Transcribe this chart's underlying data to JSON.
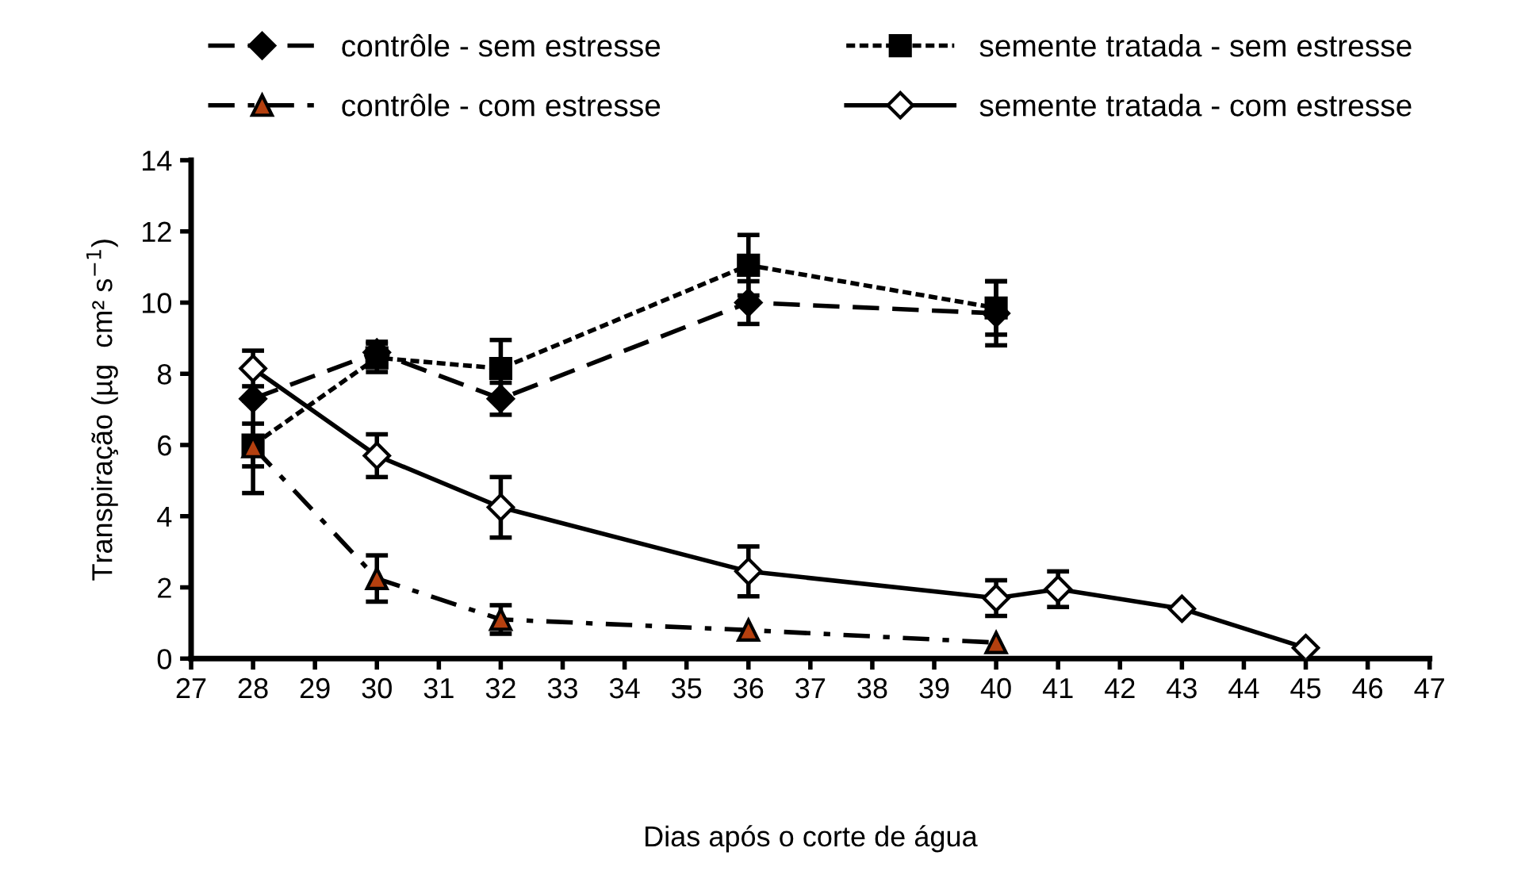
{
  "chart_data": {
    "type": "line",
    "xlabel": "Dias após o corte de água",
    "ylabel": "Transpiração (µg  cm² s$^{−1}$)",
    "xlim": [
      27,
      47
    ],
    "xticks": [
      27,
      28,
      29,
      30,
      31,
      32,
      33,
      34,
      35,
      36,
      37,
      38,
      39,
      40,
      41,
      42,
      43,
      44,
      45,
      46,
      47
    ],
    "ylim": [
      0,
      14
    ],
    "yticks": [
      0,
      2,
      4,
      6,
      8,
      10,
      12,
      14
    ],
    "grid": false,
    "legend": "top",
    "series": [
      {
        "name": "contrôle - sem estresse",
        "color": "#000000",
        "marker": "diamond",
        "line_style": "dashed",
        "x": [
          28,
          30,
          32,
          36,
          40
        ],
        "values": [
          7.3,
          8.6,
          7.3,
          10.0,
          9.7
        ],
        "errors": [
          null,
          0.3,
          0.45,
          0.6,
          0.9
        ]
      },
      {
        "name": "semente tratada - sem estresse",
        "color": "#000000",
        "marker": "square",
        "line_style": "dotted",
        "x": [
          28,
          30,
          32,
          36,
          40
        ],
        "values": [
          6.0,
          8.45,
          8.15,
          11.05,
          9.85
        ],
        "errors": [
          0.6,
          0.4,
          0.8,
          0.85,
          0.75
        ]
      },
      {
        "name": "contrôle - com estresse",
        "color": "#000000",
        "marker": "triangle",
        "line_style": "dashdot",
        "x": [
          28,
          30,
          32,
          36,
          40
        ],
        "values": [
          5.95,
          2.25,
          1.1,
          0.8,
          0.45
        ],
        "errors": [
          1.3,
          0.65,
          0.4,
          null,
          null
        ]
      },
      {
        "name": "semente tratada - com estresse",
        "color": "#000000",
        "marker": "diamond",
        "line_style": "solid",
        "x": [
          28,
          30,
          32,
          36,
          40,
          41,
          43,
          45
        ],
        "values": [
          8.15,
          5.7,
          4.25,
          2.45,
          1.7,
          1.95,
          1.4,
          0.3
        ],
        "errors": [
          0.5,
          0.6,
          0.85,
          0.7,
          0.5,
          0.5,
          null,
          null
        ]
      }
    ]
  }
}
